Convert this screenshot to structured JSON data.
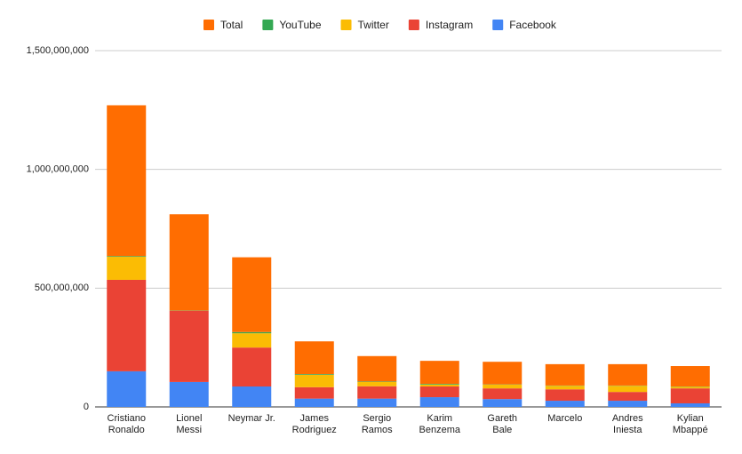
{
  "chart_data": {
    "type": "stacked_bar",
    "categories": [
      "Cristiano\nRonaldo",
      "Lionel\nMessi",
      "Neymar Jr.",
      "James\nRodriguez",
      "Sergio\nRamos",
      "Karim\nBenzema",
      "Gareth\nBale",
      "Marcelo",
      "Andres\nIniesta",
      "Kylian\nMbappé"
    ],
    "series": [
      {
        "name": "Total",
        "color": "#ff6d01",
        "values": [
          635000000,
          405000000,
          315000000,
          138000000,
          107000000,
          97000000,
          95000000,
          90000000,
          90000000,
          86000000
        ]
      },
      {
        "name": "YouTube",
        "color": "#34a853",
        "values": [
          3000000,
          1000000,
          5000000,
          3000000,
          2000000,
          3000000,
          1000000,
          1000000,
          1000000,
          1000000
        ]
      },
      {
        "name": "Twitter",
        "color": "#fbbc04",
        "values": [
          97000000,
          0,
          60000000,
          52000000,
          18000000,
          8000000,
          16000000,
          15000000,
          26000000,
          7000000
        ]
      },
      {
        "name": "Instagram",
        "color": "#ea4335",
        "values": [
          385000000,
          300000000,
          164000000,
          48000000,
          52000000,
          45000000,
          45000000,
          48000000,
          37000000,
          63000000
        ]
      },
      {
        "name": "Facebook",
        "color": "#4285f4",
        "values": [
          150000000,
          105000000,
          86000000,
          35000000,
          35000000,
          41000000,
          33000000,
          26000000,
          26000000,
          15000000
        ]
      }
    ],
    "ylim": [
      0,
      1500000000
    ],
    "yticks": [
      {
        "value": 0,
        "label": "0"
      },
      {
        "value": 500000000,
        "label": "500,000,000"
      },
      {
        "value": 1000000000,
        "label": "1,000,000,000"
      },
      {
        "value": 1500000000,
        "label": "1,500,000,000"
      }
    ],
    "grid": true,
    "legend": "top"
  }
}
